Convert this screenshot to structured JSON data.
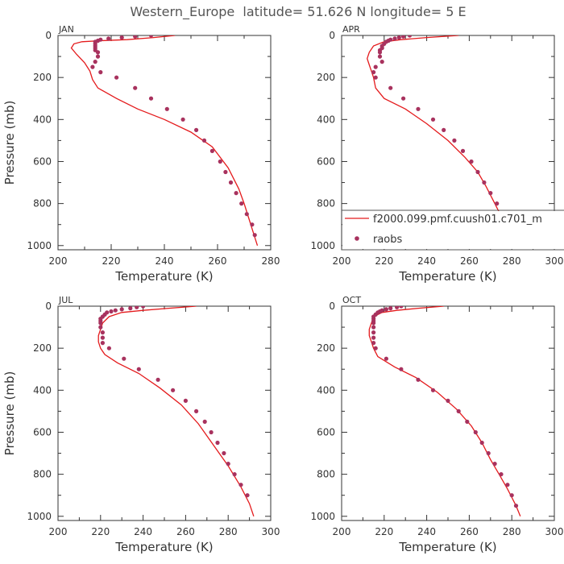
{
  "title": "Western_Europe  latitude= 51.626 N longitude= 5 E",
  "legend": {
    "entries": [
      {
        "label": "f2000.099.pmf.cuush01.c701_m",
        "kind": "line",
        "color": "#e41a1c"
      },
      {
        "label": "raobs",
        "kind": "marker",
        "color": "#a8325e"
      }
    ]
  },
  "chart_data": [
    {
      "type": "line",
      "panel": "JAN",
      "xlabel": "Temperature (K)",
      "ylabel": "Pressure (mb)",
      "xlim": [
        200,
        280
      ],
      "xticks": [
        200,
        220,
        240,
        260,
        280
      ],
      "ylim": [
        1020,
        0
      ],
      "yticks": [
        0,
        200,
        400,
        600,
        800,
        1000
      ],
      "series": [
        {
          "kind": "line",
          "color": "#e41a1c",
          "x": [
            244,
            236,
            226,
            216,
            209,
            206,
            205,
            207,
            210,
            212,
            213,
            215,
            222,
            230,
            240,
            250,
            258,
            264,
            268,
            270,
            272,
            274,
            275
          ],
          "y": [
            0,
            10,
            20,
            25,
            30,
            40,
            60,
            90,
            130,
            170,
            210,
            250,
            300,
            350,
            400,
            460,
            530,
            630,
            730,
            800,
            880,
            960,
            1000
          ]
        },
        {
          "kind": "marker",
          "color": "#a8325e",
          "x": [
            235,
            229,
            224,
            219,
            216,
            215,
            214,
            214,
            214,
            214,
            214,
            215,
            215,
            214,
            213,
            216,
            222,
            229,
            235,
            241,
            247,
            252,
            255,
            258,
            261,
            263,
            265,
            267,
            269,
            271,
            273,
            274
          ],
          "y": [
            0,
            5,
            10,
            15,
            20,
            25,
            30,
            40,
            50,
            60,
            70,
            80,
            100,
            125,
            150,
            175,
            200,
            250,
            300,
            350,
            400,
            450,
            500,
            550,
            600,
            650,
            700,
            750,
            800,
            850,
            900,
            950
          ]
        }
      ]
    },
    {
      "type": "line",
      "panel": "APR",
      "xlabel": "Temperature (K)",
      "ylabel": "",
      "xlim": [
        200,
        300
      ],
      "xticks": [
        200,
        220,
        240,
        260,
        280,
        300
      ],
      "ylim": [
        1020,
        0
      ],
      "yticks": [
        0,
        200,
        400,
        600,
        800,
        1000
      ],
      "series": [
        {
          "kind": "line",
          "color": "#e41a1c",
          "x": [
            255,
            240,
            228,
            220,
            215,
            213,
            212,
            213,
            214,
            215,
            216,
            220,
            230,
            240,
            250,
            258,
            264,
            268,
            272,
            276,
            280,
            282
          ],
          "y": [
            0,
            10,
            20,
            30,
            50,
            80,
            110,
            140,
            170,
            200,
            250,
            300,
            350,
            420,
            500,
            580,
            650,
            720,
            800,
            880,
            960,
            1000
          ]
        },
        {
          "kind": "marker",
          "color": "#a8325e",
          "x": [
            232,
            229,
            227,
            225,
            223,
            222,
            221,
            220,
            219,
            219,
            218,
            218,
            218,
            219,
            216,
            215,
            216,
            223,
            229,
            236,
            243,
            248,
            253,
            257,
            261,
            264,
            267,
            270,
            273,
            277,
            281
          ],
          "y": [
            0,
            5,
            10,
            15,
            20,
            25,
            30,
            40,
            50,
            60,
            70,
            80,
            100,
            125,
            150,
            175,
            200,
            250,
            300,
            350,
            400,
            450,
            500,
            550,
            600,
            650,
            700,
            750,
            800,
            850,
            900
          ]
        }
      ]
    },
    {
      "type": "line",
      "panel": "JUL",
      "xlabel": "Temperature (K)",
      "ylabel": "Pressure (mb)",
      "xlim": [
        200,
        300
      ],
      "xticks": [
        200,
        220,
        240,
        260,
        280,
        300
      ],
      "ylim": [
        1020,
        0
      ],
      "yticks": [
        0,
        200,
        400,
        600,
        800,
        1000
      ],
      "series": [
        {
          "kind": "line",
          "color": "#e41a1c",
          "x": [
            265,
            252,
            240,
            230,
            224,
            221,
            220,
            219,
            219,
            220,
            222,
            228,
            238,
            248,
            258,
            266,
            273,
            280,
            286,
            290,
            292
          ],
          "y": [
            0,
            10,
            20,
            30,
            50,
            80,
            110,
            140,
            170,
            200,
            230,
            270,
            320,
            390,
            470,
            560,
            660,
            760,
            860,
            940,
            1000
          ]
        },
        {
          "kind": "marker",
          "color": "#a8325e",
          "x": [
            240,
            237,
            234,
            230,
            227,
            225,
            223,
            222,
            221,
            220,
            220,
            220,
            220,
            221,
            221,
            221,
            224,
            231,
            238,
            247,
            254,
            260,
            265,
            269,
            272,
            275,
            278,
            280,
            283,
            286,
            289
          ],
          "y": [
            0,
            5,
            10,
            15,
            20,
            25,
            30,
            40,
            50,
            60,
            70,
            80,
            100,
            125,
            150,
            175,
            200,
            250,
            300,
            350,
            400,
            450,
            500,
            550,
            600,
            650,
            700,
            750,
            800,
            850,
            900
          ]
        }
      ]
    },
    {
      "type": "line",
      "panel": "OCT",
      "xlabel": "Temperature (K)",
      "ylabel": "",
      "xlim": [
        200,
        300
      ],
      "xticks": [
        200,
        220,
        240,
        260,
        280,
        300
      ],
      "ylim": [
        1020,
        0
      ],
      "yticks": [
        0,
        200,
        400,
        600,
        800,
        1000
      ],
      "series": [
        {
          "kind": "line",
          "color": "#e41a1c",
          "x": [
            248,
            236,
            226,
            219,
            215,
            214,
            213,
            213,
            214,
            215,
            217,
            225,
            235,
            245,
            254,
            261,
            266,
            270,
            274,
            278,
            282,
            284
          ],
          "y": [
            0,
            10,
            20,
            30,
            50,
            80,
            110,
            140,
            170,
            200,
            240,
            290,
            340,
            410,
            490,
            570,
            650,
            730,
            800,
            870,
            950,
            1000
          ]
        },
        {
          "kind": "marker",
          "color": "#a8325e",
          "x": [
            228,
            226,
            223,
            221,
            219,
            218,
            217,
            216,
            215,
            215,
            215,
            215,
            215,
            215,
            215,
            215,
            216,
            221,
            228,
            236,
            243,
            250,
            255,
            259,
            263,
            266,
            269,
            272,
            275,
            278,
            280,
            282
          ],
          "y": [
            0,
            5,
            10,
            15,
            20,
            25,
            30,
            40,
            50,
            60,
            70,
            80,
            100,
            125,
            150,
            175,
            200,
            250,
            300,
            350,
            400,
            450,
            500,
            550,
            600,
            650,
            700,
            750,
            800,
            850,
            900,
            950
          ]
        }
      ]
    }
  ]
}
